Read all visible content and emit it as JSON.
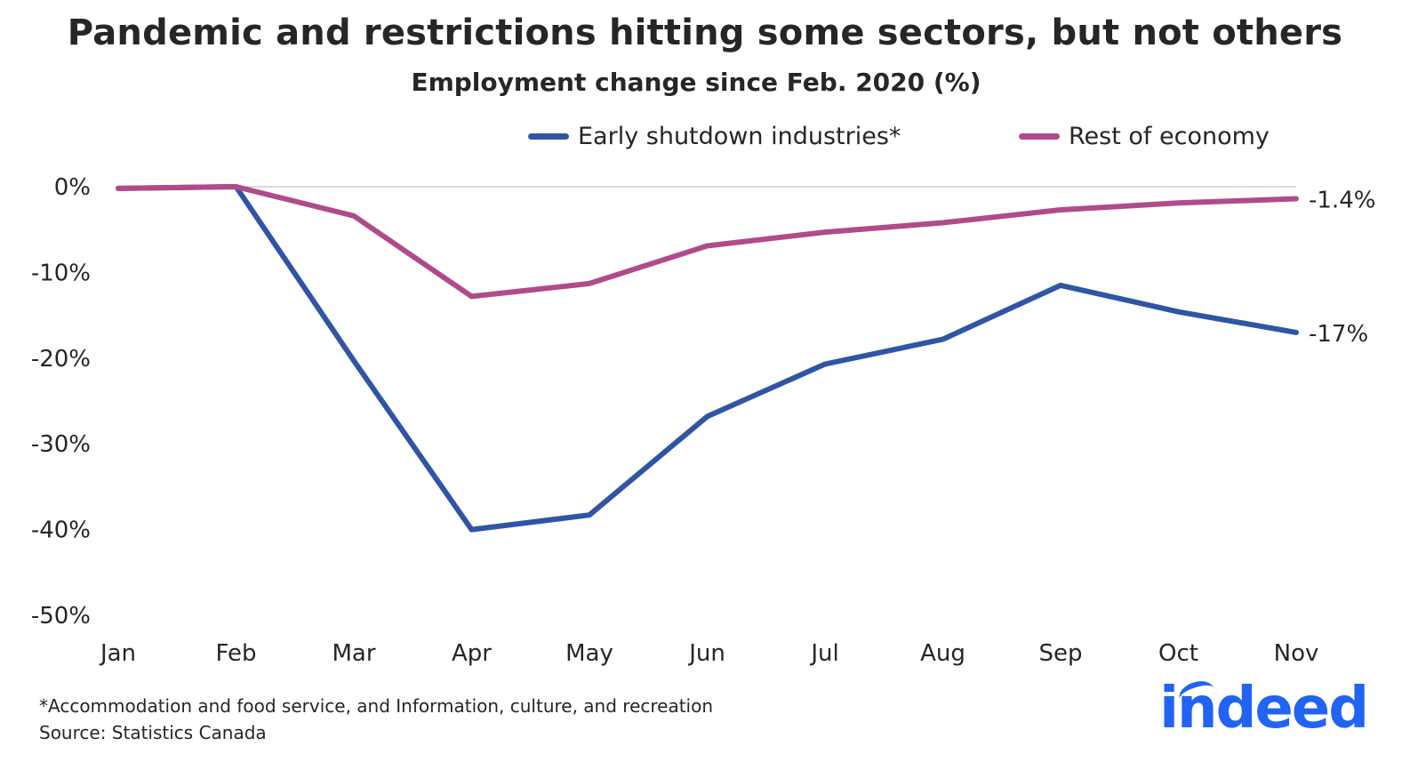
{
  "title": "Pandemic and restrictions hitting some sectors, but not others",
  "subtitle": "Employment change since Feb. 2020 (%)",
  "footnote": "*Accommodation and food service, and Information, culture, and recreation",
  "source": "Source: Statistics Canada",
  "logo_text": "indeed",
  "colors": {
    "series1": "#2f55a4",
    "series2": "#b04b8b",
    "zero_line": "#d9d9d9",
    "logo": "#2164f3"
  },
  "chart_data": {
    "type": "line",
    "title": "Pandemic and restrictions hitting some sectors, but not others",
    "subtitle": "Employment change since Feb. 2020 (%)",
    "xlabel": "",
    "ylabel": "",
    "categories": [
      "Jan",
      "Feb",
      "Mar",
      "Apr",
      "May",
      "Jun",
      "Jul",
      "Aug",
      "Sep",
      "Oct",
      "Nov"
    ],
    "y_ticks": [
      0,
      -10,
      -20,
      -30,
      -40,
      -50
    ],
    "y_tick_labels": [
      "0%",
      "-10%",
      "-20%",
      "-30%",
      "-40%",
      "-50%"
    ],
    "ylim": [
      -50,
      0
    ],
    "grid": false,
    "legend_position": "top",
    "series": [
      {
        "name": "Early shutdown industries*",
        "color": "#2f55a4",
        "values": [
          -0.2,
          0,
          -20.3,
          -40,
          -38.3,
          -26.8,
          -20.7,
          -17.8,
          -11.5,
          -14.6,
          -17.0
        ],
        "end_label": "-17%"
      },
      {
        "name": "Rest of economy",
        "color": "#b04b8b",
        "values": [
          -0.2,
          0,
          -3.4,
          -12.8,
          -11.3,
          -6.9,
          -5.3,
          -4.2,
          -2.7,
          -1.9,
          -1.4
        ],
        "end_label": "-1.4%"
      }
    ]
  }
}
